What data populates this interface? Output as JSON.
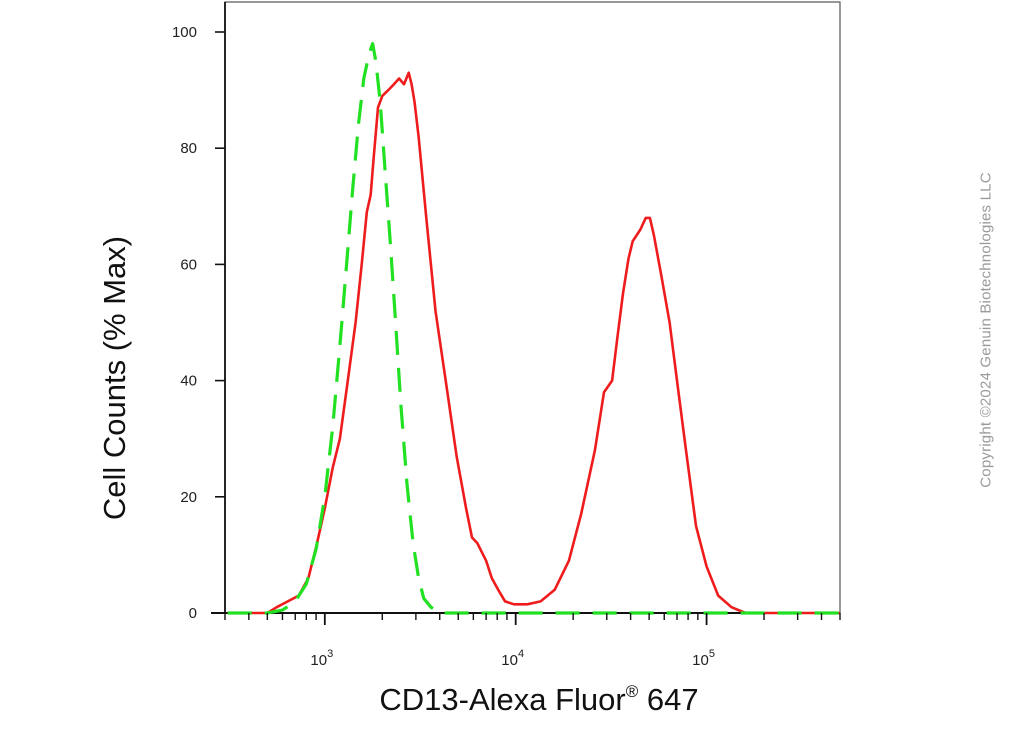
{
  "chart_data": {
    "type": "line",
    "xlabel": "CD13-Alexa Fluor",
    "xlabel_superscript": "®",
    "xlabel_suffix": " 647",
    "ylabel": "Cell Counts (% Max)",
    "x_scale": "log",
    "xlim": [
      300,
      500000
    ],
    "ylim": [
      0,
      105
    ],
    "yticks": [
      0,
      20,
      40,
      60,
      80,
      100
    ],
    "xtick_labels": [
      {
        "value": 1000,
        "base": "10",
        "exp": "3"
      },
      {
        "value": 10000,
        "base": "10",
        "exp": "4"
      },
      {
        "value": 100000,
        "base": "10",
        "exp": "5"
      }
    ],
    "grid": false,
    "series": [
      {
        "color": "#ee1c1c",
        "style": "solid",
        "x": [
          310,
          420,
          500,
          560,
          640,
          730,
          820,
          910,
          1000,
          1100,
          1200,
          1320,
          1450,
          1560,
          1660,
          1740,
          1800,
          1900,
          2000,
          2150,
          2300,
          2450,
          2600,
          2750,
          2850,
          2950,
          3100,
          3400,
          3800,
          4300,
          4900,
          5500,
          5900,
          6300,
          7000,
          7500,
          8100,
          8800,
          9800,
          11500,
          13500,
          16000,
          19000,
          22000,
          26000,
          29000,
          32000,
          34000,
          36500,
          39000,
          41000,
          43000,
          45000,
          48000,
          50500,
          53000,
          58000,
          64000,
          70000,
          78000,
          88000,
          100000,
          115000,
          135000,
          160000,
          220000,
          500000
        ],
        "y": [
          0,
          0,
          0,
          1,
          2,
          3,
          6,
          12,
          18,
          25,
          30,
          40,
          50,
          60,
          69,
          72,
          78,
          87,
          89,
          90,
          91,
          92,
          91,
          93,
          91,
          88,
          82,
          68,
          52,
          40,
          27,
          18,
          13,
          12,
          9,
          6,
          4,
          2,
          1.5,
          1.5,
          2,
          4,
          9,
          17,
          28,
          38,
          40,
          47,
          55,
          61,
          64,
          65,
          66,
          68,
          68,
          65,
          58,
          50,
          40,
          28,
          15,
          8,
          3,
          1,
          0,
          0,
          0
        ]
      },
      {
        "color": "#22e022",
        "style": "dashed",
        "x": [
          310,
          500,
          600,
          700,
          800,
          900,
          1000,
          1100,
          1200,
          1300,
          1400,
          1500,
          1600,
          1700,
          1780,
          1850,
          1950,
          2050,
          2200,
          2350,
          2500,
          2700,
          2900,
          3100,
          3300,
          3600,
          4000,
          4800,
          6000,
          10000,
          100000,
          500000
        ],
        "y": [
          0,
          0,
          0.5,
          2,
          5,
          11,
          20,
          32,
          46,
          60,
          73,
          84,
          92,
          96,
          98,
          95,
          88,
          78,
          64,
          50,
          36,
          22,
          12,
          6,
          2.5,
          1,
          0,
          0,
          0,
          0,
          0,
          0
        ]
      }
    ]
  },
  "copyright": "Copyright ©2024 Genuin Biotechnologies LLC"
}
